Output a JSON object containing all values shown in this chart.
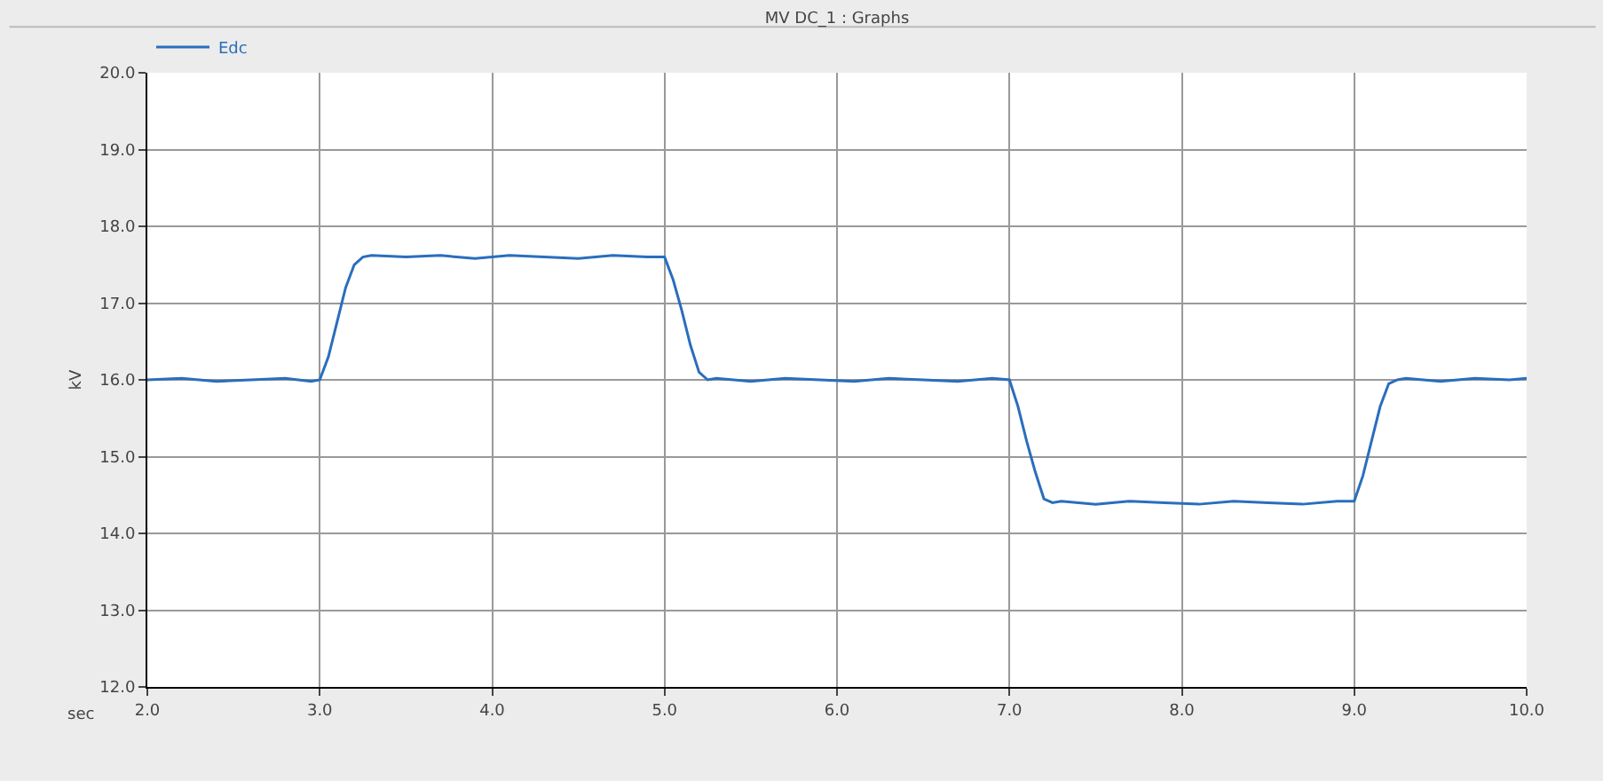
{
  "chart_data": {
    "type": "line",
    "title": "MV DC_1 : Graphs",
    "xlabel": "sec",
    "ylabel": "kV",
    "series": [
      {
        "name": "Edc",
        "color": "#2a6ebd",
        "x": [
          2.0,
          2.2,
          2.4,
          2.6,
          2.8,
          2.95,
          3.0,
          3.05,
          3.1,
          3.15,
          3.2,
          3.25,
          3.3,
          3.5,
          3.7,
          3.9,
          4.1,
          4.3,
          4.5,
          4.7,
          4.9,
          5.0,
          5.05,
          5.1,
          5.15,
          5.2,
          5.25,
          5.3,
          5.5,
          5.7,
          5.9,
          6.1,
          6.3,
          6.5,
          6.7,
          6.9,
          7.0,
          7.05,
          7.1,
          7.15,
          7.2,
          7.25,
          7.3,
          7.5,
          7.7,
          7.9,
          8.1,
          8.3,
          8.5,
          8.7,
          8.9,
          9.0,
          9.05,
          9.1,
          9.15,
          9.2,
          9.25,
          9.3,
          9.5,
          9.7,
          9.9,
          10.0
        ],
        "values": [
          16.0,
          16.02,
          15.98,
          16.0,
          16.02,
          15.98,
          16.0,
          16.3,
          16.75,
          17.2,
          17.5,
          17.6,
          17.62,
          17.6,
          17.62,
          17.58,
          17.62,
          17.6,
          17.58,
          17.62,
          17.6,
          17.6,
          17.3,
          16.9,
          16.45,
          16.1,
          16.0,
          16.02,
          15.98,
          16.02,
          16.0,
          15.98,
          16.02,
          16.0,
          15.98,
          16.02,
          16.0,
          15.65,
          15.2,
          14.8,
          14.45,
          14.4,
          14.42,
          14.38,
          14.42,
          14.4,
          14.38,
          14.42,
          14.4,
          14.38,
          14.42,
          14.42,
          14.75,
          15.2,
          15.65,
          15.95,
          16.0,
          16.02,
          15.98,
          16.02,
          16.0,
          16.02
        ]
      }
    ],
    "xlim": [
      2.0,
      10.0
    ],
    "xticks": [
      {
        "value": 2,
        "label": "2.0"
      },
      {
        "value": 3,
        "label": "3.0"
      },
      {
        "value": 4,
        "label": "4.0"
      },
      {
        "value": 5,
        "label": "5.0"
      },
      {
        "value": 6,
        "label": "6.0"
      },
      {
        "value": 7,
        "label": "7.0"
      },
      {
        "value": 8,
        "label": "8.0"
      },
      {
        "value": 9,
        "label": "9.0"
      },
      {
        "value": 10,
        "label": "10.0"
      }
    ],
    "ylim": [
      12.0,
      20.0
    ],
    "yticks": [
      {
        "value": 12,
        "label": "12.0"
      },
      {
        "value": 13,
        "label": "13.0"
      },
      {
        "value": 14,
        "label": "14.0"
      },
      {
        "value": 15,
        "label": "15.0"
      },
      {
        "value": 16,
        "label": "16.0"
      },
      {
        "value": 17,
        "label": "17.0"
      },
      {
        "value": 18,
        "label": "18.0"
      },
      {
        "value": 19,
        "label": "19.0"
      },
      {
        "value": 20,
        "label": "20.0"
      }
    ],
    "grid": true,
    "legend": "top left",
    "marker": "none",
    "line_style": "solid"
  }
}
